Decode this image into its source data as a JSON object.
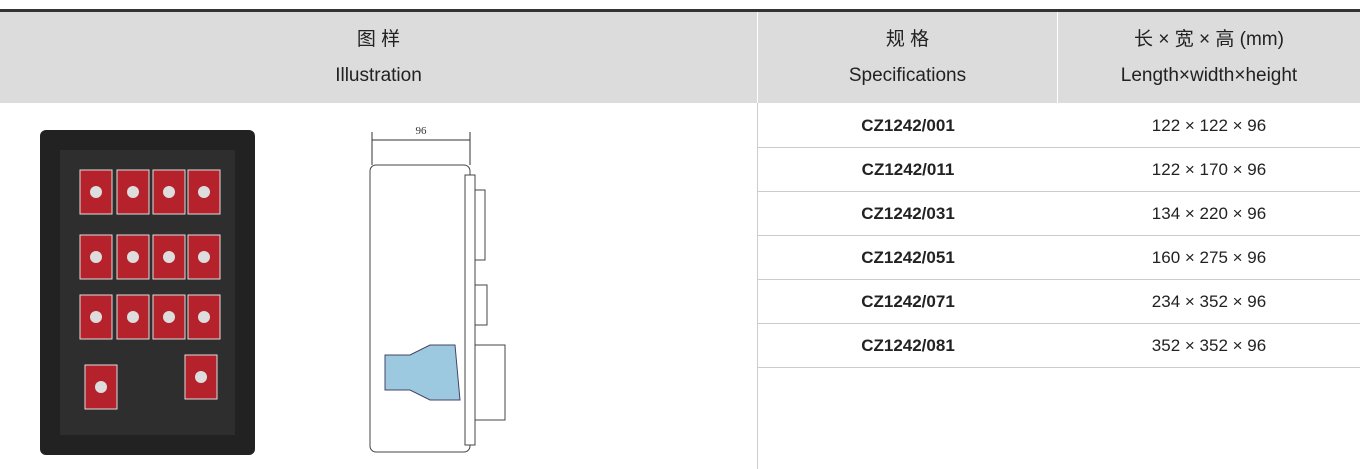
{
  "header": {
    "illustration": {
      "zh": "图 样",
      "en": "Illustration"
    },
    "specifications": {
      "zh": "规 格",
      "en": "Specifications"
    },
    "dimensions": {
      "zh": "长 × 宽 × 高 (mm)",
      "en": "Length×width×height"
    }
  },
  "drawing": {
    "dimension": "96"
  },
  "table": {
    "rows": [
      [
        "CZ1242/001",
        "122 × 122 × 96"
      ],
      [
        "CZ1242/011",
        "122 × 170 × 96"
      ],
      [
        "CZ1242/031",
        "134 × 220 × 96"
      ],
      [
        "CZ1242/051",
        "160 × 275 × 96"
      ],
      [
        "CZ1242/071",
        "234 × 352 × 96"
      ],
      [
        "CZ1242/081",
        "352 × 352 × 96"
      ]
    ]
  }
}
